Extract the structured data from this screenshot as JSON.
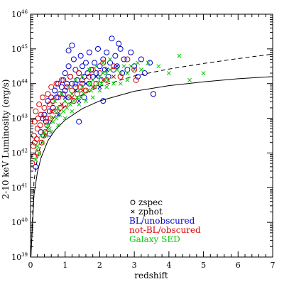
{
  "chart_data": {
    "type": "scatter",
    "xlabel": "redshift",
    "ylabel": "2-10 keV Luminosity (erg/s)",
    "xlim": [
      0,
      7
    ],
    "ylim_log10": [
      39,
      46
    ],
    "y_scale": "log",
    "x_ticks": [
      0,
      1,
      2,
      3,
      4,
      5,
      6,
      7
    ],
    "y_tick_exponents": [
      39,
      40,
      41,
      42,
      43,
      44,
      45,
      46
    ],
    "y_tick_base": "10",
    "legend": {
      "position": "bottom-right",
      "markers": [
        {
          "symbol": "circle",
          "label": "zspec"
        },
        {
          "symbol": "cross",
          "label": "zphot"
        }
      ],
      "classes": [
        {
          "label": "BL/unobscured",
          "color": "#0000cc"
        },
        {
          "label": "not-BL/obscured",
          "color": "#dd0000"
        },
        {
          "label": "Galaxy SED",
          "color": "#00cc00"
        }
      ]
    },
    "curves": [
      {
        "style": "solid",
        "points": [
          [
            0.01,
            39.0
          ],
          [
            0.1,
            40.8
          ],
          [
            0.2,
            41.45
          ],
          [
            0.3,
            41.85
          ],
          [
            0.5,
            42.35
          ],
          [
            0.7,
            42.65
          ],
          [
            1.0,
            42.95
          ],
          [
            1.5,
            43.28
          ],
          [
            2.0,
            43.5
          ],
          [
            3.0,
            43.78
          ],
          [
            4.0,
            43.94
          ],
          [
            5.0,
            44.05
          ],
          [
            6.0,
            44.14
          ],
          [
            7.0,
            44.2
          ]
        ]
      },
      {
        "style": "dashed",
        "points": [
          [
            0.01,
            39.0
          ],
          [
            0.1,
            41.2
          ],
          [
            0.2,
            41.85
          ],
          [
            0.3,
            42.25
          ],
          [
            0.5,
            42.75
          ],
          [
            0.7,
            43.05
          ],
          [
            1.0,
            43.35
          ],
          [
            1.5,
            43.68
          ],
          [
            2.0,
            43.92
          ],
          [
            3.0,
            44.22
          ],
          [
            4.0,
            44.42
          ],
          [
            5.0,
            44.58
          ],
          [
            6.0,
            44.72
          ],
          [
            7.0,
            44.85
          ]
        ]
      }
    ],
    "series": [
      {
        "class": "BL/unobscured",
        "marker": "circle",
        "points": [
          [
            0.15,
            41.6
          ],
          [
            0.3,
            42.6
          ],
          [
            0.4,
            43.1
          ],
          [
            0.45,
            42.9
          ],
          [
            0.5,
            43.5
          ],
          [
            0.55,
            43.2
          ],
          [
            0.6,
            43.6
          ],
          [
            0.65,
            43.3
          ],
          [
            0.7,
            43.8
          ],
          [
            0.75,
            43.6
          ],
          [
            0.8,
            44.0
          ],
          [
            0.85,
            43.7
          ],
          [
            0.9,
            43.9
          ],
          [
            0.95,
            44.1
          ],
          [
            1.0,
            43.8
          ],
          [
            1.0,
            44.3
          ],
          [
            1.05,
            44.0
          ],
          [
            1.1,
            43.6
          ],
          [
            1.1,
            44.5
          ],
          [
            1.15,
            44.2
          ],
          [
            1.2,
            44.0
          ],
          [
            1.25,
            44.7
          ],
          [
            1.3,
            43.9
          ],
          [
            1.3,
            44.4
          ],
          [
            1.35,
            44.1
          ],
          [
            1.4,
            44.3
          ],
          [
            1.45,
            44.8
          ],
          [
            1.5,
            44.0
          ],
          [
            1.5,
            44.5
          ],
          [
            1.55,
            44.2
          ],
          [
            1.6,
            44.6
          ],
          [
            1.65,
            44.3
          ],
          [
            1.7,
            44.0
          ],
          [
            1.7,
            44.9
          ],
          [
            1.75,
            44.4
          ],
          [
            1.8,
            44.2
          ],
          [
            1.85,
            44.6
          ],
          [
            1.9,
            44.3
          ],
          [
            1.95,
            45.0
          ],
          [
            2.0,
            44.5
          ],
          [
            2.05,
            44.1
          ],
          [
            2.1,
            44.7
          ],
          [
            2.15,
            44.4
          ],
          [
            2.2,
            44.9
          ],
          [
            2.25,
            44.2
          ],
          [
            2.3,
            44.6
          ],
          [
            2.35,
            45.3
          ],
          [
            2.4,
            44.4
          ],
          [
            2.45,
            44.8
          ],
          [
            2.5,
            44.5
          ],
          [
            2.6,
            45.0
          ],
          [
            2.65,
            44.3
          ],
          [
            2.7,
            44.7
          ],
          [
            2.8,
            44.4
          ],
          [
            2.9,
            44.9
          ],
          [
            3.0,
            44.5
          ],
          [
            3.1,
            44.2
          ],
          [
            3.2,
            44.7
          ],
          [
            3.3,
            44.3
          ],
          [
            3.45,
            44.6
          ],
          [
            3.55,
            43.7
          ],
          [
            1.2,
            45.1
          ],
          [
            1.1,
            44.95
          ],
          [
            2.55,
            45.15
          ],
          [
            1.55,
            43.6
          ],
          [
            0.55,
            42.55
          ],
          [
            0.35,
            43.0
          ],
          [
            2.1,
            43.5
          ],
          [
            1.4,
            42.9
          ]
        ]
      },
      {
        "class": "not-BL/obscured",
        "marker": "circle",
        "points": [
          [
            0.05,
            41.7
          ],
          [
            0.08,
            42.2
          ],
          [
            0.1,
            42.5
          ],
          [
            0.12,
            42.9
          ],
          [
            0.15,
            43.2
          ],
          [
            0.2,
            42.7
          ],
          [
            0.22,
            43.0
          ],
          [
            0.25,
            43.4
          ],
          [
            0.3,
            43.1
          ],
          [
            0.35,
            43.6
          ],
          [
            0.4,
            43.3
          ],
          [
            0.45,
            43.0
          ],
          [
            0.5,
            43.7
          ],
          [
            0.55,
            43.4
          ],
          [
            0.6,
            43.9
          ],
          [
            0.65,
            43.5
          ],
          [
            0.7,
            43.2
          ],
          [
            0.75,
            44.0
          ],
          [
            0.8,
            43.6
          ],
          [
            0.85,
            43.3
          ],
          [
            0.9,
            44.1
          ],
          [
            0.95,
            43.7
          ],
          [
            1.0,
            43.4
          ],
          [
            1.05,
            43.9
          ],
          [
            1.1,
            43.6
          ],
          [
            1.15,
            44.2
          ],
          [
            1.2,
            43.8
          ],
          [
            1.25,
            43.5
          ],
          [
            1.3,
            44.0
          ],
          [
            1.35,
            43.7
          ],
          [
            1.4,
            44.3
          ],
          [
            1.45,
            43.9
          ],
          [
            1.5,
            44.1
          ],
          [
            1.6,
            43.8
          ],
          [
            1.7,
            44.2
          ],
          [
            1.8,
            44.4
          ],
          [
            1.9,
            44.0
          ],
          [
            2.0,
            44.3
          ],
          [
            2.1,
            44.6
          ],
          [
            2.2,
            44.1
          ],
          [
            2.4,
            44.5
          ],
          [
            2.6,
            44.2
          ],
          [
            2.8,
            44.7
          ],
          [
            3.0,
            44.4
          ],
          [
            3.05,
            44.1
          ],
          [
            0.1,
            41.9
          ],
          [
            0.18,
            42.4
          ],
          [
            0.28,
            42.8
          ],
          [
            0.38,
            42.5
          ],
          [
            0.48,
            42.8
          ],
          [
            0.58,
            43.0
          ],
          [
            0.12,
            42.3
          ],
          [
            0.22,
            42.0
          ],
          [
            0.32,
            42.3
          ],
          [
            0.42,
            42.6
          ]
        ]
      },
      {
        "class": "Galaxy SED",
        "marker": "cross",
        "points": [
          [
            0.2,
            42.2
          ],
          [
            0.3,
            42.5
          ],
          [
            0.4,
            42.6
          ],
          [
            0.5,
            42.8
          ],
          [
            0.6,
            43.0
          ],
          [
            0.7,
            43.2
          ],
          [
            0.8,
            43.3
          ],
          [
            0.9,
            43.4
          ],
          [
            1.0,
            43.5
          ],
          [
            1.1,
            43.6
          ],
          [
            1.2,
            43.7
          ],
          [
            1.3,
            43.8
          ],
          [
            1.4,
            43.8
          ],
          [
            1.5,
            43.9
          ],
          [
            1.6,
            44.0
          ],
          [
            1.7,
            44.0
          ],
          [
            1.8,
            44.1
          ],
          [
            1.9,
            44.2
          ],
          [
            2.0,
            44.2
          ],
          [
            2.1,
            44.3
          ],
          [
            2.2,
            44.3
          ],
          [
            2.3,
            44.4
          ],
          [
            2.5,
            44.4
          ],
          [
            2.7,
            44.5
          ],
          [
            2.9,
            44.5
          ],
          [
            3.1,
            44.6
          ],
          [
            3.4,
            44.6
          ],
          [
            3.7,
            44.5
          ],
          [
            4.0,
            44.3
          ],
          [
            4.3,
            44.8
          ],
          [
            4.6,
            44.1
          ],
          [
            5.0,
            44.3
          ],
          [
            0.25,
            42.0
          ],
          [
            0.35,
            42.3
          ],
          [
            0.45,
            42.5
          ],
          [
            0.55,
            42.7
          ],
          [
            0.65,
            42.9
          ],
          [
            0.75,
            43.0
          ],
          [
            0.85,
            43.1
          ],
          [
            0.95,
            43.2
          ],
          [
            1.05,
            43.3
          ],
          [
            1.15,
            43.4
          ],
          [
            1.25,
            43.5
          ],
          [
            1.35,
            43.6
          ],
          [
            1.45,
            43.6
          ],
          [
            1.55,
            43.7
          ],
          [
            1.65,
            43.8
          ],
          [
            1.75,
            43.8
          ],
          [
            1.85,
            43.9
          ],
          [
            1.95,
            44.0
          ],
          [
            2.05,
            44.0
          ],
          [
            2.15,
            44.1
          ],
          [
            2.25,
            44.1
          ],
          [
            2.4,
            44.2
          ],
          [
            2.6,
            44.3
          ],
          [
            2.8,
            44.3
          ],
          [
            3.0,
            44.4
          ],
          [
            3.2,
            44.4
          ],
          [
            0.7,
            43.5
          ],
          [
            0.9,
            43.7
          ],
          [
            1.1,
            43.9
          ],
          [
            1.3,
            44.1
          ],
          [
            1.5,
            44.2
          ],
          [
            1.7,
            44.4
          ],
          [
            1.9,
            44.5
          ],
          [
            2.1,
            44.6
          ],
          [
            2.3,
            44.7
          ],
          [
            0.6,
            42.6
          ],
          [
            0.8,
            42.8
          ],
          [
            1.0,
            43.0
          ],
          [
            1.2,
            43.2
          ],
          [
            1.4,
            43.4
          ],
          [
            1.6,
            43.5
          ],
          [
            1.8,
            43.6
          ],
          [
            2.0,
            43.8
          ],
          [
            2.2,
            43.9
          ],
          [
            2.4,
            44.0
          ],
          [
            2.6,
            44.0
          ],
          [
            2.8,
            44.1
          ],
          [
            0.15,
            41.8
          ],
          [
            0.18,
            42.1
          ]
        ]
      },
      {
        "class": "BL/unobscured",
        "marker": "cross",
        "points": [
          [
            1.0,
            43.6
          ],
          [
            1.3,
            43.8
          ],
          [
            1.6,
            44.0
          ],
          [
            1.9,
            44.2
          ],
          [
            2.2,
            44.4
          ],
          [
            2.5,
            44.5
          ],
          [
            0.8,
            43.1
          ],
          [
            1.4,
            43.5
          ],
          [
            2.0,
            43.9
          ]
        ]
      },
      {
        "class": "not-BL/obscured",
        "marker": "cross",
        "points": [
          [
            0.6,
            43.2
          ],
          [
            0.9,
            43.4
          ],
          [
            1.2,
            43.6
          ],
          [
            1.5,
            43.8
          ],
          [
            1.8,
            43.9
          ],
          [
            2.1,
            44.1
          ],
          [
            2.4,
            44.2
          ]
        ]
      }
    ]
  }
}
